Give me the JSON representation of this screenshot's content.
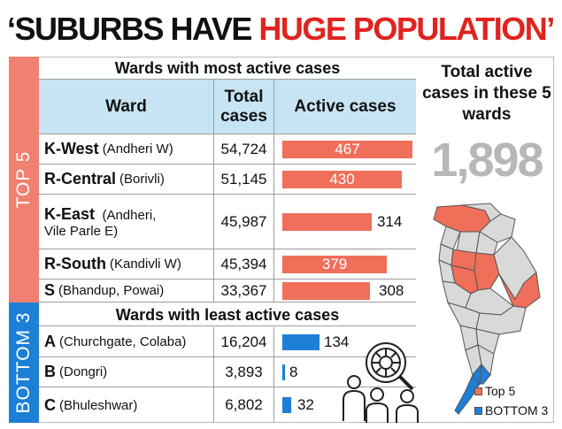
{
  "headline": {
    "part1": "‘SUBURBS HAVE ",
    "part2": "HUGE POPULATION’"
  },
  "sidebar": {
    "top_label": "TOP 5",
    "bottom_label": "BOTTOM 3"
  },
  "top_section": {
    "title": "Wards with most active cases",
    "columns": [
      "Ward",
      "Total cases",
      "Active cases"
    ],
    "rows": [
      {
        "ward": "K-West",
        "area": "(Andheri W)",
        "area2": "",
        "total": "54,724",
        "active": "467",
        "active_value": 467
      },
      {
        "ward": "R-Central",
        "area": "(Borivli)",
        "area2": "",
        "total": "51,145",
        "active": "430",
        "active_value": 430
      },
      {
        "ward": "K-East",
        "area": "(Andheri,",
        "area2": "Vile Parle E)",
        "total": "45,987",
        "active": "314",
        "active_value": 314
      },
      {
        "ward": "R-South",
        "area": "(Kandivli W)",
        "area2": "",
        "total": "45,394",
        "active": "379",
        "active_value": 379
      },
      {
        "ward": "S",
        "area": "(Bhandup, Powai)",
        "area2": "",
        "total": "33,367",
        "active": "308",
        "active_value": 308
      }
    ]
  },
  "bottom_section": {
    "title": "Wards with least active cases",
    "rows": [
      {
        "ward": "A",
        "area": "(Churchgate, Colaba)",
        "total": "16,204",
        "active": "134",
        "active_value": 134
      },
      {
        "ward": "B",
        "area": "(Dongri)",
        "total": "3,893",
        "active": "8",
        "active_value": 8
      },
      {
        "ward": "C",
        "area": "(Bhuleshwar)",
        "total": "6,802",
        "active": "32",
        "active_value": 32
      }
    ]
  },
  "summary": {
    "title": "Total active cases in these 5 wards",
    "value": "1,898"
  },
  "legend": {
    "top": "Top 5",
    "bottom": "BOTTOM 3"
  },
  "colors": {
    "accent_red": "#e0231e",
    "bar_red": "#ef6f5b",
    "bar_blue": "#1e7fd6",
    "header_blue": "#c6e4f4",
    "number_grey": "#b7b7b7"
  },
  "icons": [
    "mumbai-wards-map",
    "virus-magnifier-people-icon"
  ]
}
